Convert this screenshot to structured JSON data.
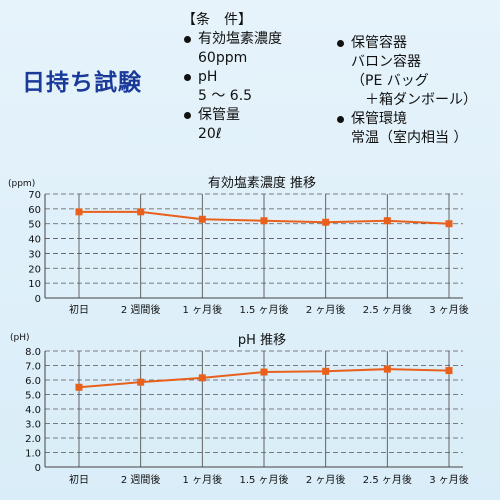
{
  "title": "日持ち試験",
  "conditions": {
    "heading": "【条　件】",
    "left": [
      {
        "label": "有効塩素濃度",
        "values": [
          "60ppm"
        ]
      },
      {
        "label": "pH",
        "values": [
          "5 ～ 6.5"
        ]
      },
      {
        "label": "保管量",
        "values": [
          "20ℓ"
        ]
      }
    ],
    "right": [
      {
        "label": "保管容器",
        "values": [
          "バロン容器",
          "（PE バッグ",
          "＋箱ダンボール）"
        ]
      },
      {
        "label": "保管環境",
        "values": [
          "常温（室内相当 ）"
        ]
      }
    ]
  },
  "colors": {
    "line": "#e8601c",
    "grid": "#555555",
    "axis": "#444444"
  },
  "chart_data": [
    {
      "type": "line",
      "title": "有効塩素濃度 推移",
      "unit_label": "(ppm)",
      "categories": [
        "初日",
        "2 週間後",
        "1 ヶ月後",
        "1.5 ヶ月後",
        "2 ヶ月後",
        "2.5 ヶ月後",
        "3 ヶ月後"
      ],
      "series": [
        {
          "values": [
            58,
            58,
            53,
            52,
            51,
            52,
            50
          ]
        }
      ],
      "ylim": [
        0,
        70
      ],
      "yticks": [
        "0",
        "10",
        "20",
        "30",
        "40",
        "50",
        "60",
        "70"
      ],
      "grid": true
    },
    {
      "type": "line",
      "title": "pH 推移",
      "unit_label": "(pH)",
      "categories": [
        "初日",
        "2 週間後",
        "1 ヶ月後",
        "1.5 ヶ月後",
        "2 ヶ月後",
        "2.5 ヶ月後",
        "3 ヶ月後"
      ],
      "series": [
        {
          "values": [
            5.5,
            5.85,
            6.15,
            6.55,
            6.6,
            6.75,
            6.65
          ]
        }
      ],
      "ylim": [
        0,
        8
      ],
      "yticks": [
        "0",
        "1.0",
        "2.0",
        "3.0",
        "4.0",
        "5.0",
        "6.0",
        "7.0",
        "8.0"
      ],
      "grid": true
    }
  ]
}
